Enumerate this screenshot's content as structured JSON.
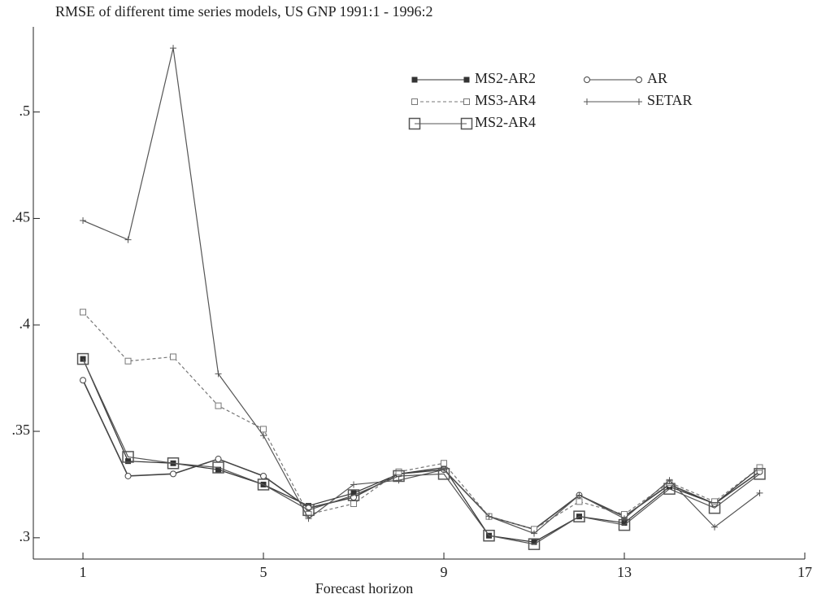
{
  "chart_data": {
    "type": "line",
    "title": "RMSE of different time series models, US GNP 1991:1 - 1996:2",
    "xlabel": "Forecast horizon",
    "x": [
      1,
      2,
      3,
      4,
      5,
      6,
      7,
      8,
      9,
      10,
      11,
      12,
      13,
      14,
      15,
      16
    ],
    "xlim": [
      -0.1,
      17
    ],
    "xticks": [
      1,
      5,
      9,
      13,
      17
    ],
    "ylim": [
      0.29,
      0.54
    ],
    "yticks": [
      {
        "value": 0.3,
        "label": ".3"
      },
      {
        "value": 0.35,
        "label": ".35"
      },
      {
        "value": 0.4,
        "label": ".4"
      },
      {
        "value": 0.45,
        "label": ".45"
      },
      {
        "value": 0.5,
        "label": ".5"
      }
    ],
    "series": [
      {
        "name": "MS2-AR2",
        "color": "#333333",
        "marker": "filled-square",
        "values": [
          0.384,
          0.336,
          0.335,
          0.332,
          0.325,
          0.315,
          0.321,
          0.33,
          0.333,
          0.301,
          0.298,
          0.31,
          0.307,
          0.324,
          0.316,
          0.333
        ]
      },
      {
        "name": "AR",
        "color": "#444444",
        "marker": "circle",
        "values": [
          0.374,
          0.329,
          0.33,
          0.337,
          0.329,
          0.314,
          0.319,
          0.33,
          0.332,
          0.31,
          0.304,
          0.32,
          0.31,
          0.325,
          0.316,
          0.331
        ]
      },
      {
        "name": "MS3-AR4",
        "color": "#777777",
        "marker": "small-square",
        "dashed": true,
        "values": [
          0.406,
          0.383,
          0.385,
          0.362,
          0.351,
          0.311,
          0.316,
          0.331,
          0.335,
          0.31,
          0.304,
          0.317,
          0.311,
          0.326,
          0.317,
          0.333
        ]
      },
      {
        "name": "SETAR",
        "color": "#555555",
        "marker": "plus",
        "values": [
          0.449,
          0.44,
          0.53,
          0.377,
          0.348,
          0.309,
          0.325,
          0.327,
          0.332,
          0.31,
          0.302,
          0.32,
          0.309,
          0.327,
          0.305,
          0.321
        ]
      },
      {
        "name": "MS2-AR4",
        "color": "#555555",
        "marker": "big-square",
        "values": [
          0.384,
          0.338,
          0.335,
          0.333,
          0.325,
          0.313,
          0.32,
          0.329,
          0.33,
          0.301,
          0.297,
          0.31,
          0.306,
          0.323,
          0.314,
          0.33
        ]
      }
    ]
  }
}
